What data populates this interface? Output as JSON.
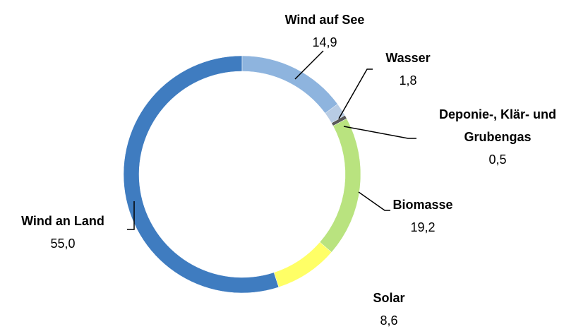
{
  "chart_data": {
    "type": "donut",
    "categories": [
      "Wind auf See",
      "Wasser",
      "Deponie-, Klär- und Grubengas",
      "Biomasse",
      "Solar",
      "Wind an Land"
    ],
    "values": [
      14.9,
      1.8,
      0.5,
      19.2,
      8.6,
      55.0
    ],
    "value_labels": [
      "14,9",
      "1,8",
      "0,5",
      "19,2",
      "8,6",
      "55,0"
    ],
    "colors": [
      "#8eb4de",
      "#b8cce4",
      "#595959",
      "#b9e37f",
      "#ffff66",
      "#3f7cc0"
    ]
  }
}
